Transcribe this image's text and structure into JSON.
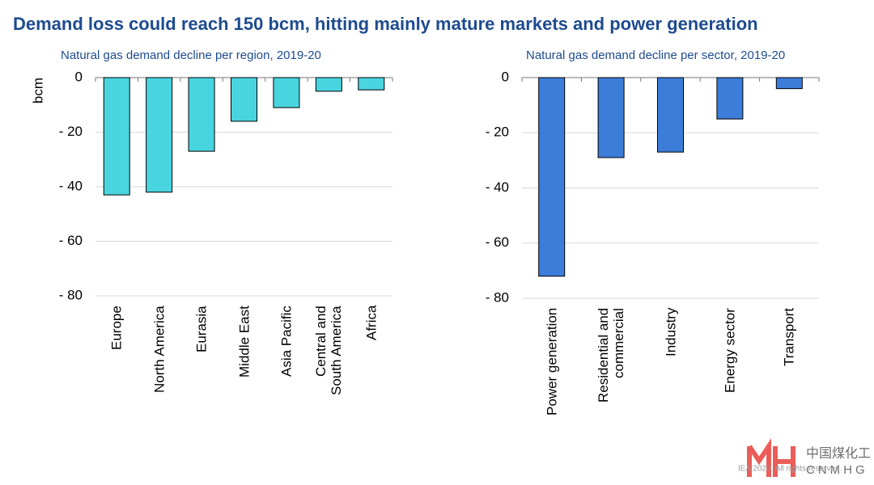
{
  "title": "Demand loss could reach 150 bcm, hitting mainly mature markets and power generation",
  "chart_data": [
    {
      "type": "bar",
      "subtitle": "Natural gas demand decline per region, 2019-20",
      "ylabel": "bcm",
      "categories": [
        "Europe",
        "North America",
        "Eurasia",
        "Middle East",
        "Asia Pacific",
        "Central and South America",
        "Africa"
      ],
      "values": [
        -43,
        -42,
        -27,
        -16,
        -11,
        -5,
        -4.5
      ],
      "color": "#48d5e0",
      "ylim": [
        -80,
        0
      ],
      "yticks": [
        {
          "value": -80,
          "label": "- 80"
        },
        {
          "value": -60,
          "label": "- 60"
        },
        {
          "value": -40,
          "label": "- 40"
        },
        {
          "value": -20,
          "label": "- 20"
        },
        0
      ],
      "grid": true
    },
    {
      "type": "bar",
      "subtitle": "Natural gas demand decline per sector, 2019-20",
      "categories": [
        "Power generation",
        "Residential and commercial",
        "Industry",
        "Energy sector",
        "Transport"
      ],
      "values": [
        -72,
        -29,
        -27,
        -15,
        -4
      ],
      "color": "#3b7dd8",
      "ylim": [
        -80,
        0
      ],
      "yticks": [
        {
          "value": -80,
          "label": "- 80"
        },
        {
          "value": -60,
          "label": "- 60"
        },
        {
          "value": -40,
          "label": "- 40"
        },
        {
          "value": -20,
          "label": "- 20"
        },
        0
      ],
      "grid": true
    }
  ],
  "footer": "IEA 2020. All rights reserved.",
  "watermark": {
    "cn": "中国煤化工",
    "en": "CNMHG"
  }
}
